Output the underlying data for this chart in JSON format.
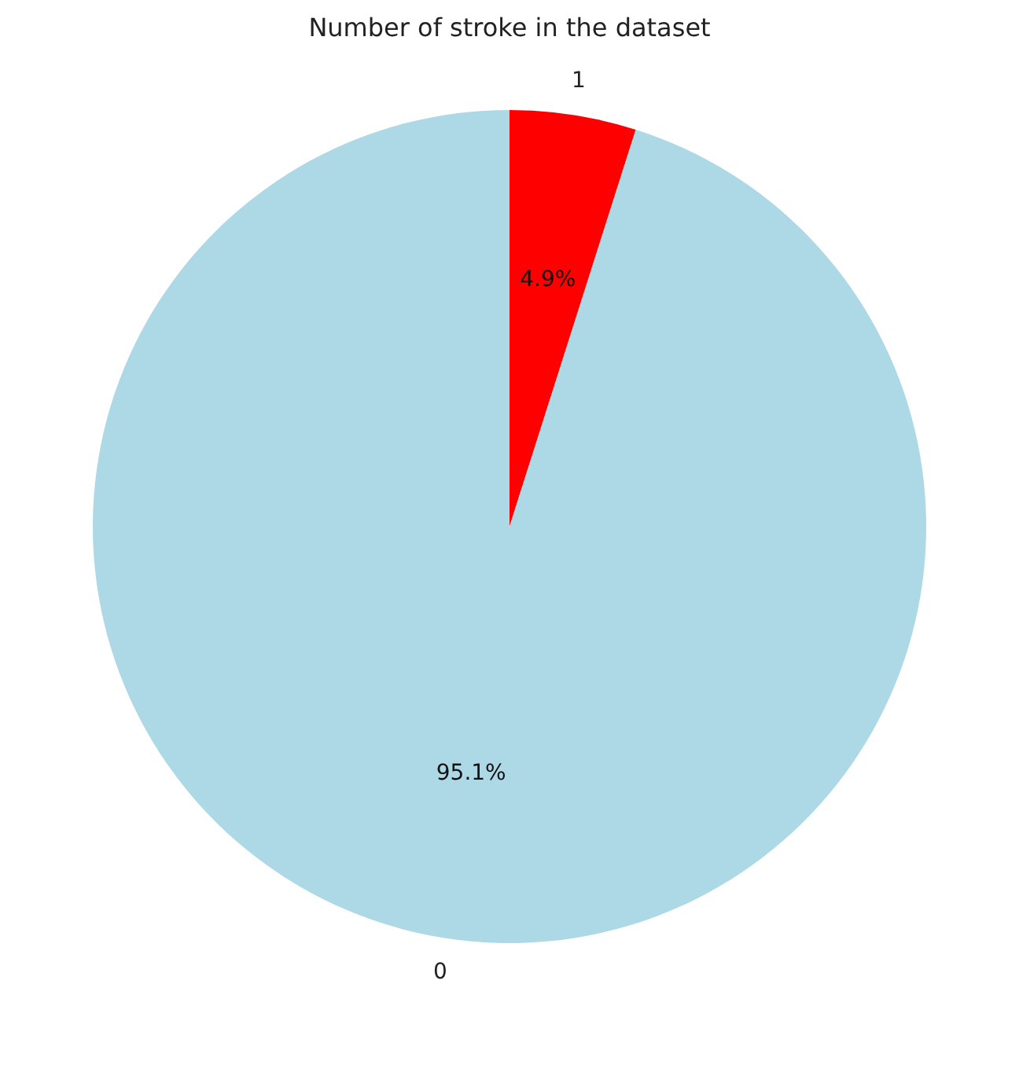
{
  "chart_data": {
    "type": "pie",
    "title": "Number of stroke in the dataset",
    "categories": [
      "1",
      "0"
    ],
    "values": [
      4.9,
      95.1
    ],
    "colors": [
      "#ff0000",
      "#add8e6"
    ],
    "value_labels": [
      "4.9%",
      "95.1%"
    ],
    "legend": false
  }
}
